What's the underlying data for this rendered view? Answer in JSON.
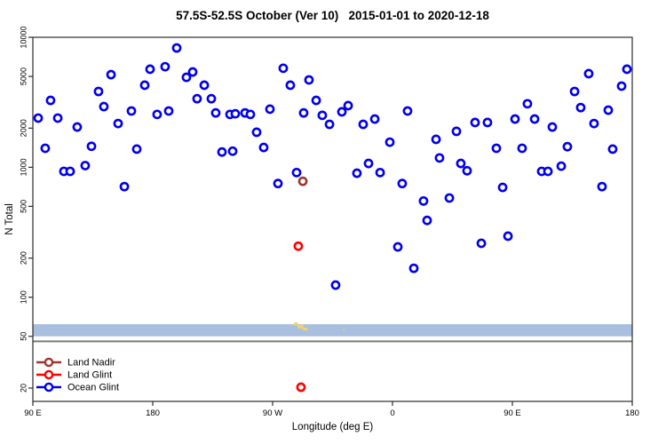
{
  "chart_data": {
    "type": "scatter",
    "title": "57.5S-52.5S October (Ver 10)   2015-01-01 to 2020-12-18",
    "xlabel": "Longitude (deg E)",
    "ylabel": "N Total",
    "y_scale": "log",
    "ylim": [
      15.8,
      10000
    ],
    "xlim_axis_deg": [
      0,
      450
    ],
    "grid": false,
    "legend_position": "bottom-left",
    "y_ticks": [
      20,
      50,
      100,
      200,
      500,
      1000,
      2000,
      5000,
      10000
    ],
    "x_ticks": [
      {
        "axis_deg": 0,
        "label": "90 E"
      },
      {
        "axis_deg": 90,
        "label": "180"
      },
      {
        "axis_deg": 180,
        "label": "90 W"
      },
      {
        "axis_deg": 270,
        "label": "0"
      },
      {
        "axis_deg": 360,
        "label": "90 E"
      },
      {
        "axis_deg": 450,
        "label": "180"
      }
    ],
    "map_strip": {
      "fill": "#A9BFE0",
      "n_top": 62,
      "n_bottom": 50,
      "border_line_n": 46.5,
      "border_line_color": "#7a7a7a",
      "land_color": "#EFD36B",
      "land_patches": [
        {
          "ax": 196.0,
          "w": 3.0,
          "n1": 64.0,
          "n2": 60.5
        },
        {
          "ax": 198.7,
          "w": 4.5,
          "n1": 61.5,
          "n2": 57.5
        },
        {
          "ax": 202.5,
          "w": 3.5,
          "n1": 58.5,
          "n2": 55.5
        },
        {
          "ax": 205.0,
          "w": 1.5,
          "n1": 57.0,
          "n2": 55.3
        },
        {
          "ax": 233.0,
          "w": 1.0,
          "n1": 57.0,
          "n2": 55.0
        }
      ]
    },
    "series": [
      {
        "name": "Ocean Glint",
        "color": "#0000EE",
        "symbol": "open-circle",
        "points": [
          [
            108,
            8280
          ],
          [
            88,
            5680
          ],
          [
            99.3,
            5940
          ],
          [
            115.3,
            4920
          ],
          [
            120,
            5410
          ],
          [
            58.7,
            5160
          ],
          [
            128.7,
            4280
          ],
          [
            84,
            4280
          ],
          [
            49.3,
            3830
          ],
          [
            123.3,
            3370
          ],
          [
            134,
            3370
          ],
          [
            13.3,
            3270
          ],
          [
            53.3,
            2930
          ],
          [
            74,
            2710
          ],
          [
            93.3,
            2550
          ],
          [
            102,
            2710
          ],
          [
            137.3,
            2620
          ],
          [
            148,
            2550
          ],
          [
            4,
            2390
          ],
          [
            18.7,
            2390
          ],
          [
            64,
            2170
          ],
          [
            33.3,
            2040
          ],
          [
            9.3,
            1400
          ],
          [
            44,
            1450
          ],
          [
            78,
            1380
          ],
          [
            142,
            1310
          ],
          [
            150,
            1330
          ],
          [
            39.3,
            1030
          ],
          [
            23.3,
            930
          ],
          [
            28,
            930
          ],
          [
            68.7,
            710
          ],
          [
            188,
            5780
          ],
          [
            193.3,
            4280
          ],
          [
            207.3,
            4700
          ],
          [
            212.7,
            3270
          ],
          [
            178,
            2800
          ],
          [
            152,
            2580
          ],
          [
            159.3,
            2620
          ],
          [
            163.3,
            2550
          ],
          [
            203.3,
            2620
          ],
          [
            217.3,
            2510
          ],
          [
            222.7,
            2140
          ],
          [
            232,
            2670
          ],
          [
            236.7,
            2980
          ],
          [
            248,
            2140
          ],
          [
            256.7,
            2350
          ],
          [
            281.3,
            2710
          ],
          [
            168,
            1860
          ],
          [
            173.3,
            1420
          ],
          [
            268,
            1560
          ],
          [
            252,
            1070
          ],
          [
            260.7,
            910
          ],
          [
            243.3,
            900
          ],
          [
            198,
            910
          ],
          [
            417.3,
            5250
          ],
          [
            446,
            5680
          ],
          [
            442,
            4210
          ],
          [
            406.7,
            3830
          ],
          [
            371.3,
            3080
          ],
          [
            411.3,
            2880
          ],
          [
            432,
            2750
          ],
          [
            362,
            2350
          ],
          [
            376.7,
            2350
          ],
          [
            421.3,
            2170
          ],
          [
            332,
            2210
          ],
          [
            341.3,
            2210
          ],
          [
            390,
            2040
          ],
          [
            318,
            1890
          ],
          [
            302.7,
            1640
          ],
          [
            348,
            1400
          ],
          [
            367.3,
            1400
          ],
          [
            401.3,
            1440
          ],
          [
            435.3,
            1380
          ],
          [
            305.3,
            1180
          ],
          [
            321.3,
            1070
          ],
          [
            326,
            940
          ],
          [
            382,
            930
          ],
          [
            386.7,
            930
          ],
          [
            396.7,
            1020
          ],
          [
            184,
            750
          ],
          [
            277.3,
            750
          ],
          [
            293.3,
            550
          ],
          [
            296,
            390
          ],
          [
            274,
            244
          ],
          [
            286,
            167
          ],
          [
            227.3,
            124
          ],
          [
            352.7,
            700
          ],
          [
            427.3,
            710
          ],
          [
            312.7,
            580
          ],
          [
            336.7,
            260
          ],
          [
            356.7,
            295
          ]
        ]
      },
      {
        "name": "Land Nadir",
        "color": "#A0362F",
        "symbol": "open-circle",
        "points": [
          [
            202.7,
            780
          ]
        ]
      },
      {
        "name": "Land Glint",
        "color": "#FF0000",
        "symbol": "open-circle",
        "points": [
          [
            199.3,
            247
          ],
          [
            201.3,
            20.3
          ]
        ]
      }
    ],
    "legend_order": [
      "Land Nadir",
      "Land Glint",
      "Ocean Glint"
    ]
  }
}
